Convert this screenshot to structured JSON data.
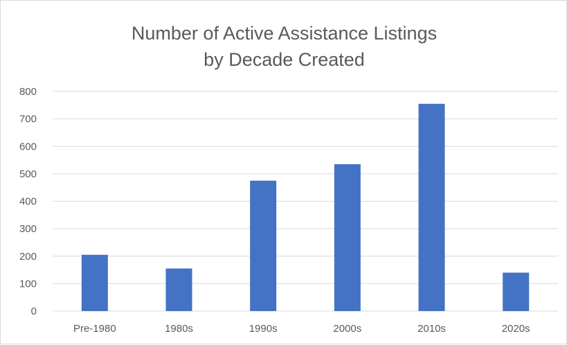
{
  "chart_data": {
    "type": "bar",
    "title_lines": [
      "Number of Active Assistance Listings",
      "by Decade Created"
    ],
    "categories": [
      "Pre-1980",
      "1980s",
      "1990s",
      "2000s",
      "2010s",
      "2020s"
    ],
    "values": [
      205,
      155,
      475,
      535,
      755,
      140
    ],
    "xlabel": "",
    "ylabel": "",
    "ylim": [
      0,
      800
    ],
    "yticks": [
      0,
      100,
      200,
      300,
      400,
      500,
      600,
      700,
      800
    ],
    "grid": true,
    "legend": "none",
    "bar_color": "#4472C4"
  }
}
